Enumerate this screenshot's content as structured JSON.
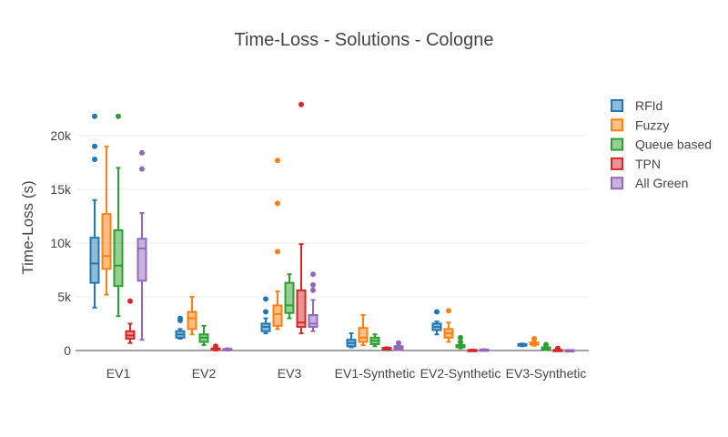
{
  "chart_data": {
    "type": "box",
    "title": "Time-Loss - Solutions - Cologne",
    "ylabel": "Time-Loss (s)",
    "xlabel": "",
    "ylim": [
      -1500,
      24000
    ],
    "yticks": [
      0,
      5000,
      10000,
      15000,
      20000
    ],
    "ytick_labels": [
      "0",
      "5k",
      "10k",
      "15k",
      "20k"
    ],
    "grid": true,
    "legend_position": "right",
    "categories": [
      "EV1",
      "EV2",
      "EV3",
      "EV1-Synthetic",
      "EV2-Synthetic",
      "EV3-Synthetic"
    ],
    "series": [
      {
        "name": "RFId",
        "color": "#1f77b4",
        "boxes": [
          {
            "min": 4000,
            "q1": 6300,
            "median": 8100,
            "q3": 10500,
            "max": 14000,
            "outliers": [
              17800,
              19000,
              21800
            ]
          },
          {
            "min": 1100,
            "q1": 1200,
            "median": 1500,
            "q3": 1800,
            "max": 2000,
            "outliers": [
              2800,
              3000
            ]
          },
          {
            "min": 1600,
            "q1": 1800,
            "median": 2200,
            "q3": 2500,
            "max": 3000,
            "outliers": [
              3600,
              4800
            ]
          },
          {
            "min": 300,
            "q1": 400,
            "median": 700,
            "q3": 1000,
            "max": 1600,
            "outliers": []
          },
          {
            "min": 1500,
            "q1": 1900,
            "median": 2200,
            "q3": 2500,
            "max": 2700,
            "outliers": [
              3600
            ]
          },
          {
            "min": 400,
            "q1": 450,
            "median": 550,
            "q3": 600,
            "max": 650,
            "outliers": []
          }
        ]
      },
      {
        "name": "Fuzzy",
        "color": "#ff7f0e",
        "boxes": [
          {
            "min": 5200,
            "q1": 7600,
            "median": 8800,
            "q3": 12700,
            "max": 19000,
            "outliers": []
          },
          {
            "min": 1500,
            "q1": 2000,
            "median": 3000,
            "q3": 3600,
            "max": 5000,
            "outliers": []
          },
          {
            "min": 2000,
            "q1": 2300,
            "median": 3400,
            "q3": 4200,
            "max": 5500,
            "outliers": [
              9200,
              13700,
              17700
            ]
          },
          {
            "min": 500,
            "q1": 800,
            "median": 1200,
            "q3": 2100,
            "max": 3300,
            "outliers": []
          },
          {
            "min": 800,
            "q1": 1200,
            "median": 1600,
            "q3": 2000,
            "max": 2600,
            "outliers": [
              3700
            ]
          },
          {
            "min": 450,
            "q1": 550,
            "median": 650,
            "q3": 750,
            "max": 850,
            "outliers": [
              1100
            ]
          }
        ]
      },
      {
        "name": "Queue based",
        "color": "#2ca02c",
        "boxes": [
          {
            "min": 3200,
            "q1": 6000,
            "median": 7900,
            "q3": 11200,
            "max": 17000,
            "outliers": [
              21800
            ]
          },
          {
            "min": 500,
            "q1": 800,
            "median": 1200,
            "q3": 1500,
            "max": 2300,
            "outliers": []
          },
          {
            "min": 3000,
            "q1": 3500,
            "median": 4200,
            "q3": 6300,
            "max": 7100,
            "outliers": []
          },
          {
            "min": 400,
            "q1": 600,
            "median": 900,
            "q3": 1200,
            "max": 1500,
            "outliers": []
          },
          {
            "min": 200,
            "q1": 300,
            "median": 400,
            "q3": 500,
            "max": 600,
            "outliers": [
              800,
              1200
            ]
          },
          {
            "min": 50,
            "q1": 100,
            "median": 200,
            "q3": 300,
            "max": 350,
            "outliers": [
              550
            ]
          }
        ]
      },
      {
        "name": "TPN",
        "color": "#d62728",
        "boxes": [
          {
            "min": 700,
            "q1": 1100,
            "median": 1400,
            "q3": 1800,
            "max": 2500,
            "outliers": [
              4600
            ]
          },
          {
            "min": 0,
            "q1": 50,
            "median": 100,
            "q3": 200,
            "max": 300,
            "outliers": [
              400
            ]
          },
          {
            "min": 1600,
            "q1": 2200,
            "median": 2600,
            "q3": 5600,
            "max": 9900,
            "outliers": [
              22900
            ]
          },
          {
            "min": 100,
            "q1": 150,
            "median": 200,
            "q3": 250,
            "max": 300,
            "outliers": []
          },
          {
            "min": 0,
            "q1": 20,
            "median": 40,
            "q3": 60,
            "max": 80,
            "outliers": []
          },
          {
            "min": 0,
            "q1": 20,
            "median": 40,
            "q3": 60,
            "max": 80,
            "outliers": [
              200
            ]
          }
        ]
      },
      {
        "name": "All Green",
        "color": "#9467bd",
        "boxes": [
          {
            "min": 1000,
            "q1": 6500,
            "median": 9500,
            "q3": 10400,
            "max": 12800,
            "outliers": [
              16900,
              18400
            ]
          },
          {
            "min": 0,
            "q1": 50,
            "median": 100,
            "q3": 150,
            "max": 200,
            "outliers": []
          },
          {
            "min": 1800,
            "q1": 2200,
            "median": 2500,
            "q3": 3300,
            "max": 4700,
            "outliers": [
              5600,
              6100,
              7100
            ]
          },
          {
            "min": 50,
            "q1": 150,
            "median": 250,
            "q3": 400,
            "max": 500,
            "outliers": [
              700
            ]
          },
          {
            "min": 0,
            "q1": 30,
            "median": 60,
            "q3": 90,
            "max": 120,
            "outliers": []
          },
          {
            "min": 0,
            "q1": 10,
            "median": 20,
            "q3": 30,
            "max": 40,
            "outliers": []
          }
        ]
      }
    ]
  }
}
